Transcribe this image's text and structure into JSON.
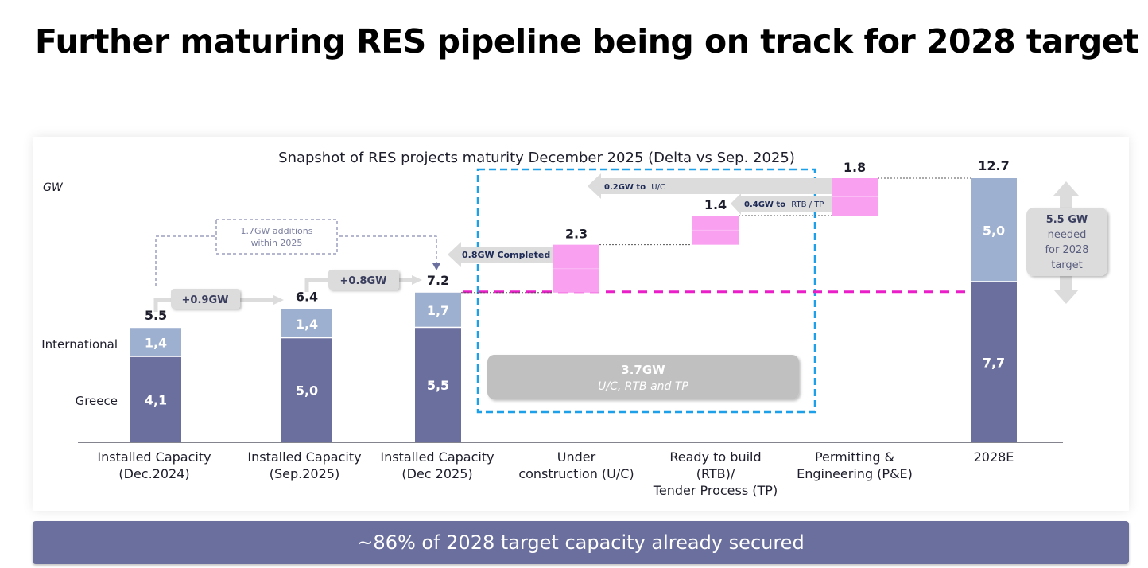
{
  "page_title": "Further maturing RES pipeline being on track for 2028 target",
  "banner": "~86% of 2028 target capacity already secured",
  "colors": {
    "greece": "#6b6f9e",
    "international": "#9eb0cf",
    "pipeline": "#f9a0f0",
    "target_line": "#e91ec8",
    "highlight_box": "#1ea0e8",
    "callout_grey": "#dcdcdc",
    "summary_grey": "#c0c0c0",
    "banner": "#6b6f9e"
  },
  "chart_data": {
    "type": "bar",
    "subtype": "stacked-waterfall",
    "title": "Snapshot of RES projects maturity December 2025 (Delta vs Sep. 2025)",
    "ylabel": "GW",
    "xlabel": "",
    "ylim": [
      0,
      12.7
    ],
    "grid": false,
    "categories": [
      [
        "Installed Capacity",
        "(Dec.2024)"
      ],
      [
        "Installed Capacity",
        "(Sep.2025)"
      ],
      [
        "Installed Capacity",
        "(Dec 2025)"
      ],
      [
        "Under",
        "construction (U/C)"
      ],
      [
        "Ready to build",
        "(RTB)/",
        "Tender Process (TP)"
      ],
      [
        "Permitting &",
        "Engineering (P&E)"
      ],
      [
        "2028E"
      ]
    ],
    "series": [
      {
        "name": "Greece",
        "values": [
          4.1,
          5.0,
          5.5,
          null,
          null,
          null,
          7.7
        ],
        "labels": [
          "4,1",
          "5,0",
          "5,5",
          "",
          "",
          "",
          "7,7"
        ]
      },
      {
        "name": "International",
        "values": [
          1.4,
          1.4,
          1.7,
          null,
          null,
          null,
          5.0
        ],
        "labels": [
          "1,4",
          "1,4",
          "1,7",
          "",
          "",
          "",
          "5,0"
        ]
      }
    ],
    "waterfall": [
      {
        "category_index": 3,
        "base": 7.2,
        "value": 2.3,
        "label": "2.3"
      },
      {
        "category_index": 4,
        "base": 9.5,
        "value": 1.4,
        "label": "1.4"
      },
      {
        "category_index": 5,
        "base": 10.9,
        "value": 1.8,
        "label": "1.8"
      }
    ],
    "totals": [
      {
        "category_index": 0,
        "value": 5.5,
        "label": "5.5"
      },
      {
        "category_index": 1,
        "value": 6.4,
        "label": "6.4"
      },
      {
        "category_index": 2,
        "value": 7.2,
        "label": "7.2"
      },
      {
        "category_index": 6,
        "value": 12.7,
        "label": "12.7"
      }
    ],
    "series_side_labels": [
      "International",
      "Greece"
    ],
    "reference_line": {
      "value": 7.2,
      "style": "dashed"
    },
    "annotations": {
      "step1": "+0.9GW",
      "step2": "+0.8GW",
      "additions_line1": "1.7GW additions",
      "additions_line2": "within 2025",
      "completed": "0.8GW Completed",
      "to_uc_bold": "0.2GW to",
      "to_uc_rest": "U/C",
      "to_rtb_bold": "0.4GW to",
      "to_rtb_rest": "RTB / TP",
      "pipeline_total": "3.7GW",
      "pipeline_sub": "U/C, RTB and TP",
      "needed_value": "5.5 GW",
      "needed_line1": "needed",
      "needed_line2": "for 2028",
      "needed_line3": "target"
    }
  }
}
